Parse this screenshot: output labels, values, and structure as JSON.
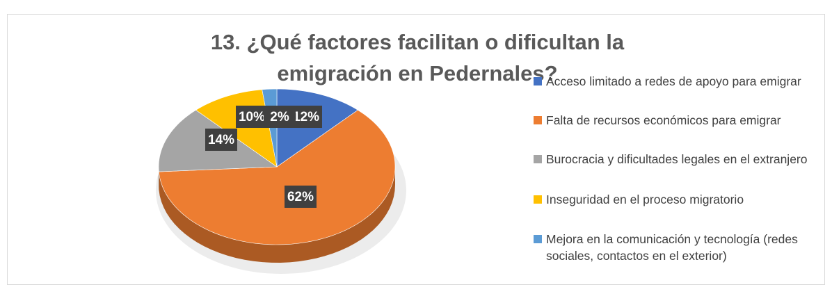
{
  "chart_data": {
    "type": "pie",
    "title": "13. ¿Qué factores facilitan o dificultan la emigración en Pedernales?",
    "categories": [
      "Acceso limitado a redes de apoyo para emigrar",
      "Falta de recursos económicos para emigrar",
      "Burocracia y dificultades legales en el extranjero",
      "Inseguridad en el proceso migratorio",
      "Mejora en la comunicación y tecnología (redes sociales, contactos en el exterior)"
    ],
    "values": [
      12,
      62,
      14,
      10,
      2
    ],
    "value_labels": [
      "12%",
      "62%",
      "14%",
      "10%",
      "2%"
    ],
    "colors": [
      "#4472c4",
      "#ed7d31",
      "#a5a5a5",
      "#ffc000",
      "#5b9bd5"
    ],
    "legend": "right"
  }
}
